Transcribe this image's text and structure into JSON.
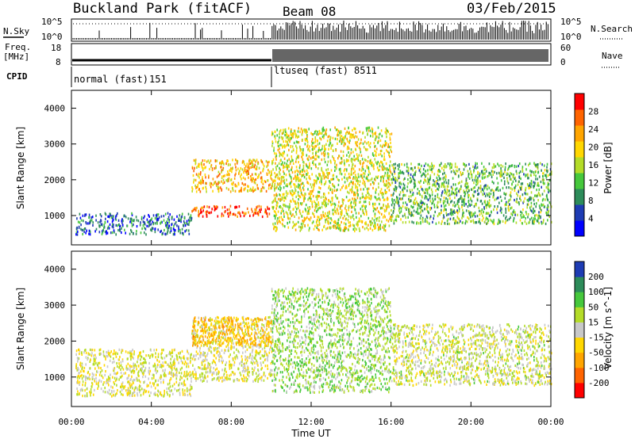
{
  "header": {
    "title": "Buckland Park (fitACF)",
    "beam": "Beam 08",
    "date": "03/Feb/2015"
  },
  "panels": {
    "nsky_label": "N.Sky",
    "nsearch_label": "N.Search",
    "nsky_ticks": [
      "10^5",
      "10^0"
    ],
    "nsearch_ticks": [
      "10^5",
      "10^0"
    ],
    "freq_label_1": "Freq.",
    "freq_label_2": "[MHz]",
    "freq_ticks": [
      "18",
      "8"
    ],
    "nave_label": "Nave",
    "nave_ticks": [
      "60",
      "0"
    ],
    "cpid_label": "CPID",
    "cpid_segments": [
      {
        "name": "normal (fast)",
        "id": "151"
      },
      {
        "name": "ltuseq (fast)",
        "id": "8511"
      }
    ]
  },
  "colors": {
    "power_scale": [
      "#0000ff",
      "#1e3cb4",
      "#2d8c5a",
      "#46c83c",
      "#b4dc28",
      "#ffd700",
      "#ffa500",
      "#ff6400",
      "#ff0000"
    ],
    "velocity_scale": [
      "#ff0000",
      "#ff6400",
      "#ffa500",
      "#ffd700",
      "#c8c8c8",
      "#b4dc28",
      "#46c83c",
      "#2d8c5a",
      "#1e3cb4"
    ]
  },
  "chart_data": [
    {
      "type": "heatmap",
      "name": "power",
      "xlabel": "Time UT",
      "ylabel": "Slant Range [km]",
      "xlim": [
        0,
        24
      ],
      "ylim": [
        180,
        4500
      ],
      "x_ticks": [
        "00:00",
        "04:00",
        "08:00",
        "12:00",
        "16:00",
        "20:00",
        "00:00"
      ],
      "y_ticks": [
        1000,
        2000,
        3000,
        4000
      ],
      "colorbar": {
        "label": "Power [dB]",
        "ticks": [
          4,
          8,
          12,
          16,
          20,
          24,
          28
        ],
        "range": [
          0,
          32
        ]
      },
      "regions": [
        {
          "t": [
            0.2,
            6.0
          ],
          "r": [
            500,
            1100
          ],
          "level": 6
        },
        {
          "t": [
            6.0,
            10.0
          ],
          "r": [
            1000,
            1300
          ],
          "level": 30
        },
        {
          "t": [
            6.0,
            10.0
          ],
          "r": [
            1700,
            2600
          ],
          "level": 22
        },
        {
          "t": [
            10.0,
            16.0
          ],
          "r": [
            600,
            3500
          ],
          "level": 18
        },
        {
          "t": [
            16.0,
            24.0
          ],
          "r": [
            800,
            2500
          ],
          "level": 12
        }
      ]
    },
    {
      "type": "heatmap",
      "name": "velocity",
      "xlabel": "Time UT",
      "ylabel": "Slant Range [km]",
      "xlim": [
        0,
        24
      ],
      "ylim": [
        180,
        4500
      ],
      "x_ticks": [
        "00:00",
        "04:00",
        "08:00",
        "12:00",
        "16:00",
        "20:00",
        "00:00"
      ],
      "y_ticks": [
        1000,
        2000,
        3000,
        4000
      ],
      "colorbar": {
        "label": "Velocity [m s^-1]",
        "ticks": [
          -200,
          -100,
          -50,
          -15,
          15,
          50,
          100,
          200
        ]
      },
      "regions": [
        {
          "t": [
            0.2,
            6.0
          ],
          "r": [
            500,
            1800
          ],
          "value": 0
        },
        {
          "t": [
            6.0,
            10.0
          ],
          "r": [
            900,
            2700
          ],
          "value": 0
        },
        {
          "t": [
            6.0,
            10.0
          ],
          "r": [
            1900,
            2700
          ],
          "value": -60
        },
        {
          "t": [
            10.0,
            16.0
          ],
          "r": [
            600,
            3500
          ],
          "value": 40
        },
        {
          "t": [
            16.0,
            24.0
          ],
          "r": [
            800,
            2500
          ],
          "value": 10
        }
      ]
    }
  ]
}
